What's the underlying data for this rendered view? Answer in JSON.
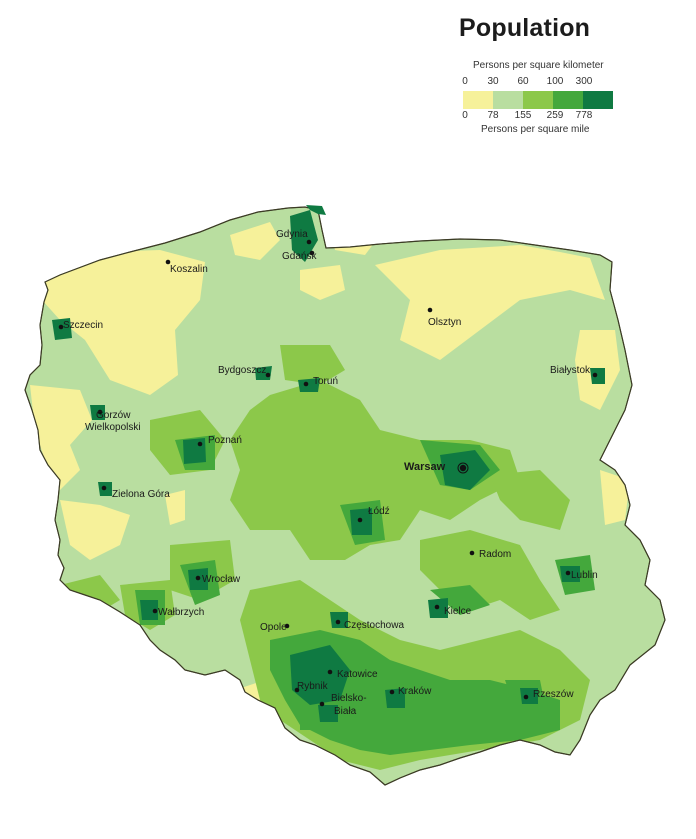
{
  "title": "Population",
  "legend": {
    "km_title": "Persons per square kilometer",
    "km_ticks": [
      "0",
      "30",
      "60",
      "100",
      "300"
    ],
    "mi_ticks": [
      "0",
      "78",
      "155",
      "259",
      "778"
    ],
    "mi_title": "Persons per square mile",
    "classes": [
      {
        "color": "#f6f19a"
      },
      {
        "color": "#b9dea0"
      },
      {
        "color": "#8cc84a"
      },
      {
        "color": "#44a83c"
      },
      {
        "color": "#0f7a42"
      }
    ]
  },
  "cities": [
    {
      "name": "Gdynia"
    },
    {
      "name": "Gdańsk"
    },
    {
      "name": "Koszalin"
    },
    {
      "name": "Szczecin"
    },
    {
      "name": "Olsztyn"
    },
    {
      "name": "Bydgoszcz"
    },
    {
      "name": "Toruń"
    },
    {
      "name": "Białystok"
    },
    {
      "name": "Gorzów"
    },
    {
      "name": "Wielkopolski"
    },
    {
      "name": "Poznań"
    },
    {
      "name": "Warsaw",
      "capital": true
    },
    {
      "name": "Zielona Góra"
    },
    {
      "name": "Łódź"
    },
    {
      "name": "Radom"
    },
    {
      "name": "Lublin"
    },
    {
      "name": "Wrocław"
    },
    {
      "name": "Wałbrzych"
    },
    {
      "name": "Kielce"
    },
    {
      "name": "Opole"
    },
    {
      "name": "Częstochowa"
    },
    {
      "name": "Katowice"
    },
    {
      "name": "Rybnik"
    },
    {
      "name": "Bielsko-"
    },
    {
      "name": "Biała"
    },
    {
      "name": "Kraków"
    },
    {
      "name": "Rzeszów"
    }
  ]
}
